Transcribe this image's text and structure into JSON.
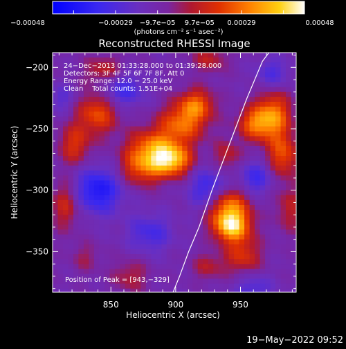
{
  "chart_data": {
    "type": "heatmap",
    "title": "Reconstructed RHESSI Image",
    "xlabel": "Heliocentric X (arcsec)",
    "ylabel": "Heliocentric Y (arcsec)",
    "xlim": [
      805,
      993
    ],
    "ylim": [
      -383,
      -188
    ],
    "x_ticks": [
      850,
      900,
      950
    ],
    "x_tick_labels": [
      "850",
      "900",
      "950"
    ],
    "y_ticks": [
      -200,
      -250,
      -300,
      -350
    ],
    "y_tick_labels": [
      "−200",
      "−250",
      "−300",
      "−350"
    ],
    "grid": false,
    "colorbar": {
      "colormap": "blue-purple-red-yellow-white",
      "range": [
        -0.00048,
        0.00048
      ],
      "tick_labels": [
        "−0.00048",
        "−0.00029",
        "−9.7e−05",
        "9.7e−05",
        "0.00029",
        "0.00048"
      ],
      "unit_label": "(photons cm⁻² s⁻¹ asec⁻²)"
    },
    "info_lines": [
      "24−Dec−2013 01:33:28.000 to 01:39:28.000",
      "Detectors: 3F 4F 5F 6F 7F 8F, Att 0",
      "Energy Range: 12.0 − 25.0 keV",
      "Clean    Total counts: 1.51E+04"
    ],
    "peak_label": "Position of Peak = [943,−329]",
    "peak": {
      "x": 943,
      "y": -329,
      "value": 0.00048
    },
    "limb": [
      [
        898,
        -383
      ],
      [
        903,
        -370
      ],
      [
        910,
        -350
      ],
      [
        918,
        -330
      ],
      [
        928,
        -300
      ],
      [
        937,
        -275
      ],
      [
        946,
        -250
      ],
      [
        955,
        -225
      ],
      [
        967,
        -195
      ],
      [
        972,
        -188
      ]
    ],
    "emission_blobs": [
      {
        "x": 943,
        "y": -329,
        "sx": 10,
        "sy": 9,
        "value": 0.00048
      },
      {
        "x": 940,
        "y": -312,
        "sx": 12,
        "sy": 10,
        "value": 0.00032
      },
      {
        "x": 897,
        "y": -276,
        "sx": 11,
        "sy": 9,
        "value": 0.0004
      },
      {
        "x": 882,
        "y": -266,
        "sx": 14,
        "sy": 11,
        "value": 0.00032
      },
      {
        "x": 905,
        "y": -246,
        "sx": 13,
        "sy": 11,
        "value": 0.0003
      },
      {
        "x": 916,
        "y": -230,
        "sx": 10,
        "sy": 9,
        "value": 0.00028
      },
      {
        "x": 873,
        "y": -283,
        "sx": 12,
        "sy": 10,
        "value": 0.00024
      },
      {
        "x": 975,
        "y": -240,
        "sx": 10,
        "sy": 14,
        "value": 0.00036
      },
      {
        "x": 960,
        "y": -246,
        "sx": 9,
        "sy": 9,
        "value": 0.00026
      },
      {
        "x": 983,
        "y": -272,
        "sx": 9,
        "sy": 12,
        "value": 0.00026
      },
      {
        "x": 952,
        "y": -353,
        "sx": 10,
        "sy": 11,
        "value": 0.00022
      },
      {
        "x": 840,
        "y": -237,
        "sx": 11,
        "sy": 12,
        "value": 0.00028
      },
      {
        "x": 822,
        "y": -263,
        "sx": 9,
        "sy": 12,
        "value": 0.00022
      },
      {
        "x": 815,
        "y": -312,
        "sx": 8,
        "sy": 14,
        "value": 0.0002
      },
      {
        "x": 845,
        "y": -203,
        "sx": 11,
        "sy": 9,
        "value": 0.00018
      },
      {
        "x": 926,
        "y": -193,
        "sx": 10,
        "sy": 8,
        "value": 0.00016
      },
      {
        "x": 940,
        "y": -272,
        "sx": 8,
        "sy": 9,
        "value": 0.00016
      },
      {
        "x": 865,
        "y": -370,
        "sx": 10,
        "sy": 10,
        "value": 0.00014
      },
      {
        "x": 925,
        "y": -362,
        "sx": 9,
        "sy": 8,
        "value": 0.00014
      },
      {
        "x": 988,
        "y": -315,
        "sx": 8,
        "sy": 14,
        "value": 0.00016
      },
      {
        "x": 830,
        "y": -355,
        "sx": 8,
        "sy": 9,
        "value": 0.0001
      }
    ],
    "absorption_blobs": [
      {
        "x": 840,
        "y": -300,
        "sx": 13,
        "sy": 13,
        "value": -0.0003
      },
      {
        "x": 858,
        "y": -218,
        "sx": 12,
        "sy": 10,
        "value": -0.00022
      },
      {
        "x": 925,
        "y": -300,
        "sx": 10,
        "sy": 12,
        "value": -0.00024
      },
      {
        "x": 962,
        "y": -290,
        "sx": 9,
        "sy": 10,
        "value": -0.0002
      },
      {
        "x": 880,
        "y": -335,
        "sx": 12,
        "sy": 11,
        "value": -0.00018
      },
      {
        "x": 975,
        "y": -205,
        "sx": 9,
        "sy": 9,
        "value": -0.00016
      },
      {
        "x": 960,
        "y": -380,
        "sx": 10,
        "sy": 8,
        "value": -0.00016
      },
      {
        "x": 812,
        "y": -225,
        "sx": 7,
        "sy": 8,
        "value": -0.00012
      }
    ]
  },
  "timestamp": "19−May−2022 09:52"
}
